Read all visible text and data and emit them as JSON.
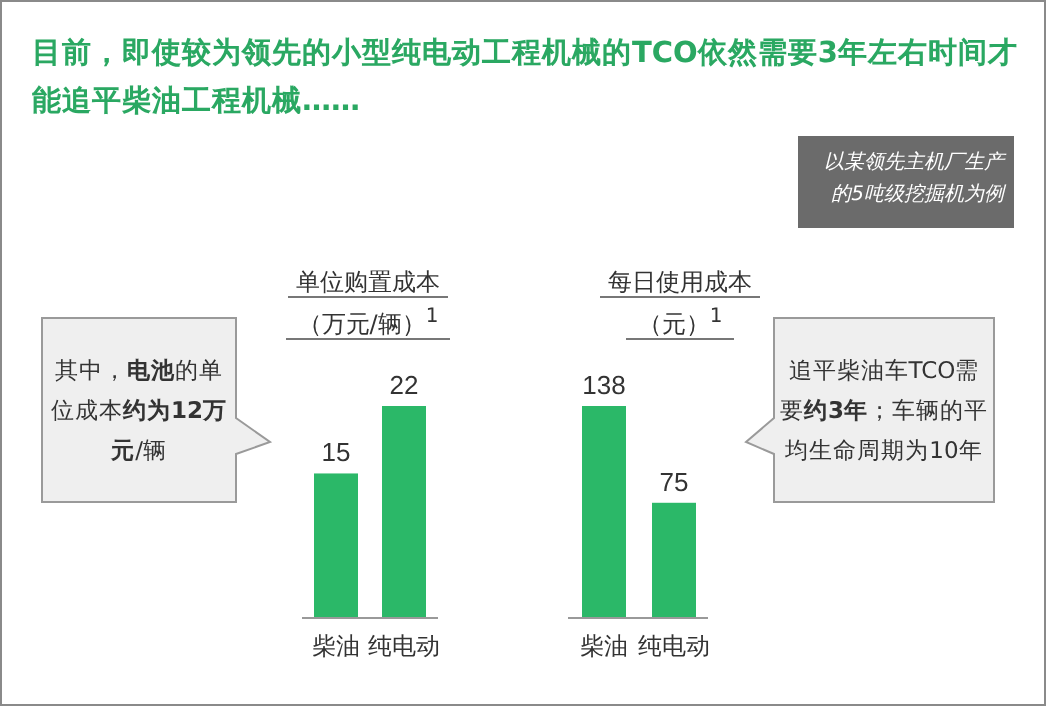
{
  "chart_data": [
    {
      "type": "other",
      "title": "目前，即使较为领先的小型纯电动工程机械的TCO依然需要3年左右时间才能追平柴油工程机械……",
      "annotations": [
        "以某领先主机厂生产的5吨级挖掘机为例"
      ]
    },
    {
      "type": "bar",
      "title": "单位购置成本",
      "subtitle": "（万元/辆）$^{1}$",
      "categories": [
        "柴油",
        "纯电动"
      ],
      "values": [
        15,
        22
      ],
      "color": "#2bb868",
      "data_labels": true,
      "annotations": [
        "其中，**电池**的单位成本**约为12万元**/辆"
      ]
    },
    {
      "type": "bar",
      "title": "每日使用成本",
      "subtitle": "（元）$^{1}$",
      "categories": [
        "柴油",
        "纯电动"
      ],
      "values": [
        138,
        75
      ],
      "color": "#2bb868",
      "data_labels": true,
      "annotations": [
        "追平柴油车TCO需要**约3年**；车辆的平均生命周期为10年"
      ]
    }
  ]
}
